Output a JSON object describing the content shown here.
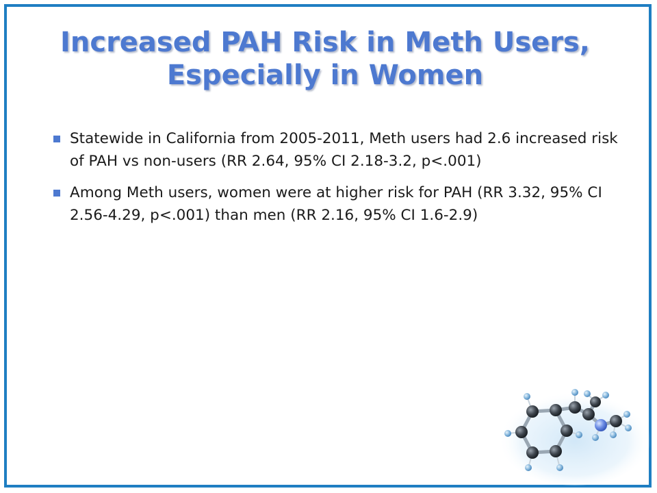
{
  "slide": {
    "title_line1": "Increased PAH Risk in Meth Users,",
    "title_line2": "Especially in Women",
    "bullets": [
      "Statewide in California from 2005-2011, Meth users had 2.6 increased risk of PAH vs non-users (RR 2.64, 95% CI 2.18-3.2, p<.001)",
      "Among Meth users, women were at higher risk for PAH (RR 3.32, 95% CI 2.56-4.29, p<.001) than men (RR 2.16, 95% CI 1.6-2.9)"
    ]
  },
  "colors": {
    "border": "#1f7ec2",
    "title": "#4d79d0",
    "bullet_marker": "#4d79d0",
    "text": "#1a1a1a"
  },
  "icons": {
    "bullet": "square-bullet-icon",
    "decoration": "methamphetamine-molecule-icon"
  }
}
